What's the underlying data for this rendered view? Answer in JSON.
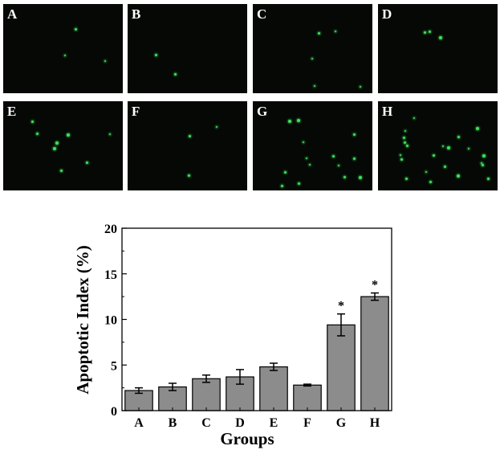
{
  "panels": [
    {
      "label": "A",
      "dots": 3
    },
    {
      "label": "B",
      "dots": 2
    },
    {
      "label": "C",
      "dots": 5
    },
    {
      "label": "D",
      "dots": 3
    },
    {
      "label": "E",
      "dots": 8
    },
    {
      "label": "F",
      "dots": 3
    },
    {
      "label": "G",
      "dots": 14
    },
    {
      "label": "H",
      "dots": 22
    }
  ],
  "colors": {
    "bar": "#8c8c8c",
    "fluorescence": "#3fe05a",
    "panel_bg": "#050805"
  },
  "chart_data": {
    "type": "bar",
    "categories": [
      "A",
      "B",
      "C",
      "D",
      "E",
      "F",
      "G",
      "H"
    ],
    "values": [
      2.2,
      2.6,
      3.5,
      3.7,
      4.8,
      2.8,
      9.4,
      12.5
    ],
    "errors": [
      0.3,
      0.4,
      0.4,
      0.8,
      0.4,
      0.1,
      1.2,
      0.4
    ],
    "significance": [
      "",
      "",
      "",
      "",
      "",
      "",
      "*",
      "*"
    ],
    "xlabel": "Groups",
    "ylabel": "Apoptotic Index (%)",
    "ylim": [
      0,
      20
    ],
    "yticks": [
      "0",
      "5",
      "10",
      "15",
      "20"
    ],
    "grid": false
  }
}
